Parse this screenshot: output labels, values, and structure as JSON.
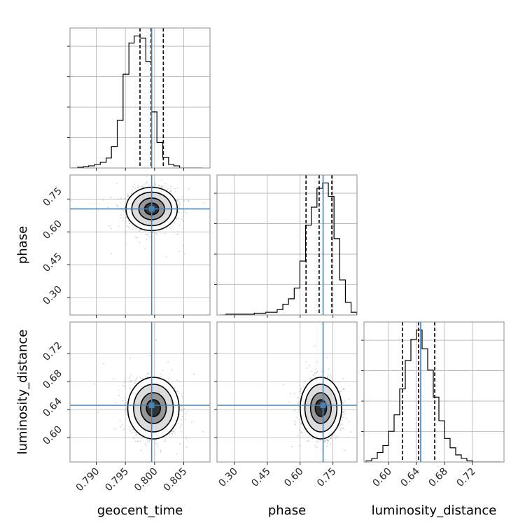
{
  "chart_data": {
    "type": "corner",
    "parameters": [
      "geocent_time",
      "phase",
      "luminosity_distance"
    ],
    "truths": {
      "geocent_time": 0.7995,
      "phase": 0.705,
      "luminosity_distance": 0.646
    },
    "truth_color": "#4682b4",
    "ranges": {
      "geocent_time": [
        0.7855,
        0.8095
      ],
      "phase": [
        0.22,
        0.86
      ],
      "luminosity_distance": [
        0.565,
        0.765
      ]
    },
    "ticks": {
      "geocent_time": [
        0.79,
        0.795,
        0.8,
        0.805
      ],
      "phase": [
        0.3,
        0.45,
        0.6,
        0.75
      ],
      "luminosity_distance": [
        0.6,
        0.64,
        0.68,
        0.72
      ]
    },
    "tick_labels": {
      "geocent_time": [
        "0.790",
        "0.795",
        "0.800",
        "0.805"
      ],
      "phase": [
        "0.30",
        "0.45",
        "0.60",
        "0.75"
      ],
      "luminosity_distance": [
        "0.60",
        "0.64",
        "0.68",
        "0.72"
      ]
    },
    "quantiles": {
      "geocent_time": [
        0.7975,
        0.7994,
        0.8015
      ],
      "phase": [
        0.627,
        0.687,
        0.745
      ],
      "luminosity_distance": [
        0.62,
        0.643,
        0.666
      ]
    },
    "marginals": {
      "geocent_time": {
        "edges": [
          0.7858,
          0.7868,
          0.7878,
          0.7887,
          0.7897,
          0.7907,
          0.7917,
          0.7926,
          0.7936,
          0.7946,
          0.7956,
          0.7965,
          0.7975,
          0.7985,
          0.7995,
          0.8004,
          0.8014,
          0.8024,
          0.8033,
          0.8043,
          0.8053,
          0.8063,
          0.8072,
          0.8082
        ],
        "counts": [
          0,
          1,
          2,
          3,
          5,
          8,
          14,
          30,
          67,
          132,
          176,
          186,
          183,
          150,
          79,
          36,
          15,
          5,
          3,
          0,
          0,
          0,
          0
        ]
      },
      "phase": {
        "edges": [
          0.235,
          0.261,
          0.287,
          0.313,
          0.339,
          0.365,
          0.391,
          0.417,
          0.443,
          0.469,
          0.495,
          0.521,
          0.547,
          0.573,
          0.599,
          0.625,
          0.651,
          0.677,
          0.703,
          0.729,
          0.755,
          0.781,
          0.807,
          0.833,
          0.859
        ],
        "counts": [
          0,
          1,
          1,
          1,
          1,
          1,
          2,
          2,
          3,
          3,
          6,
          12,
          18,
          30,
          60,
          100,
          120,
          141,
          147,
          132,
          85,
          39,
          14,
          3
        ]
      },
      "luminosity_distance": {
        "edges": [
          0.568,
          0.576,
          0.584,
          0.592,
          0.6,
          0.608,
          0.616,
          0.624,
          0.632,
          0.64,
          0.648,
          0.656,
          0.664,
          0.672,
          0.68,
          0.688,
          0.696,
          0.704,
          0.712,
          0.72,
          0.728,
          0.736,
          0.744,
          0.752,
          0.76
        ],
        "counts": [
          1,
          3,
          8,
          14,
          26,
          40,
          62,
          86,
          104,
          112,
          96,
          78,
          55,
          35,
          20,
          12,
          6,
          3,
          1,
          0,
          0,
          0,
          0,
          0
        ]
      }
    },
    "pairs": [
      {
        "x": "geocent_time",
        "y": "phase",
        "center": [
          0.7995,
          0.705
        ],
        "spread": [
          0.002,
          0.045
        ],
        "contour_levels": [
          0.6,
          1.1,
          1.7,
          2.2
        ]
      },
      {
        "x": "geocent_time",
        "y": "luminosity_distance",
        "center": [
          0.7998,
          0.642
        ],
        "spread": [
          0.002,
          0.02
        ],
        "contour_levels": [
          0.6,
          1.1,
          1.7,
          2.2
        ]
      },
      {
        "x": "phase",
        "y": "luminosity_distance",
        "center": [
          0.695,
          0.642
        ],
        "spread": [
          0.043,
          0.02
        ],
        "contour_levels": [
          0.6,
          1.1,
          1.7,
          2.2
        ]
      }
    ],
    "grid": true
  }
}
